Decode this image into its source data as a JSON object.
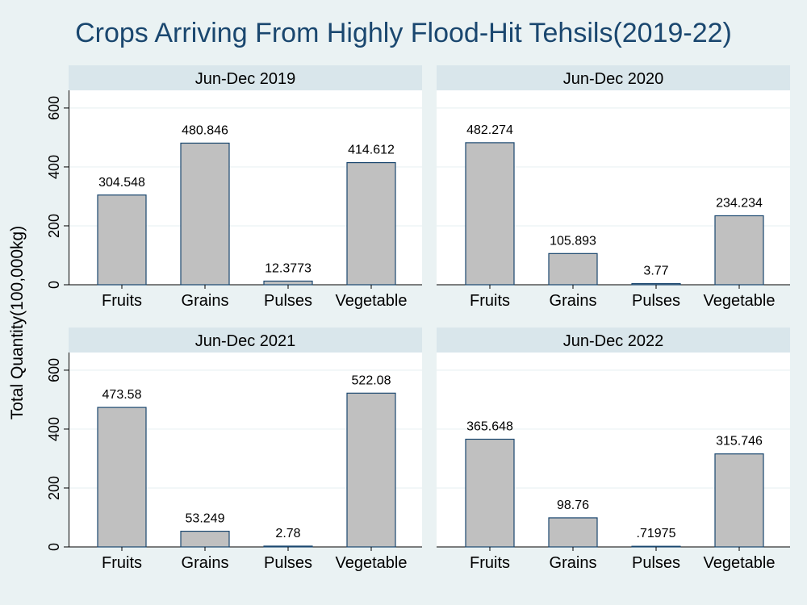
{
  "title": "Crops Arriving From Highly Flood-Hit Tehsils(2019-22)",
  "ylabel": "Total Quantity(100,000kg)",
  "colors": {
    "background": "#eaf2f3",
    "plot_area": "#ffffff",
    "strip": "#d9e6eb",
    "bar_fill": "#c0c0c0",
    "bar_stroke": "#1a476f",
    "title": "#1a476f",
    "grid": "#eaf2f3"
  },
  "chart_data": [
    {
      "type": "bar",
      "title": "Jun-Dec 2019",
      "categories": [
        "Fruits",
        "Grains",
        "Pulses",
        "Vegetable"
      ],
      "values": [
        304.548,
        480.846,
        12.3773,
        414.612
      ],
      "value_labels": [
        "304.548",
        "480.846",
        "12.3773",
        "414.612"
      ],
      "ylim": [
        0,
        660
      ],
      "yticks": [
        0,
        200,
        400,
        600
      ],
      "grid": true
    },
    {
      "type": "bar",
      "title": "Jun-Dec 2020",
      "categories": [
        "Fruits",
        "Grains",
        "Pulses",
        "Vegetable"
      ],
      "values": [
        482.274,
        105.893,
        3.77,
        234.234
      ],
      "value_labels": [
        "482.274",
        "105.893",
        "3.77",
        "234.234"
      ],
      "ylim": [
        0,
        660
      ],
      "yticks": [
        0,
        200,
        400,
        600
      ],
      "grid": true
    },
    {
      "type": "bar",
      "title": "Jun-Dec 2021",
      "categories": [
        "Fruits",
        "Grains",
        "Pulses",
        "Vegetable"
      ],
      "values": [
        473.58,
        53.249,
        2.78,
        522.08
      ],
      "value_labels": [
        "473.58",
        "53.249",
        "2.78",
        "522.08"
      ],
      "ylim": [
        0,
        660
      ],
      "yticks": [
        0,
        200,
        400,
        600
      ],
      "grid": true
    },
    {
      "type": "bar",
      "title": "Jun-Dec 2022",
      "categories": [
        "Fruits",
        "Grains",
        "Pulses",
        "Vegetable"
      ],
      "values": [
        365.648,
        98.76,
        0.71975,
        315.746
      ],
      "value_labels": [
        "365.648",
        "98.76",
        ".71975",
        "315.746"
      ],
      "ylim": [
        0,
        660
      ],
      "yticks": [
        0,
        200,
        400,
        600
      ],
      "grid": true
    }
  ]
}
